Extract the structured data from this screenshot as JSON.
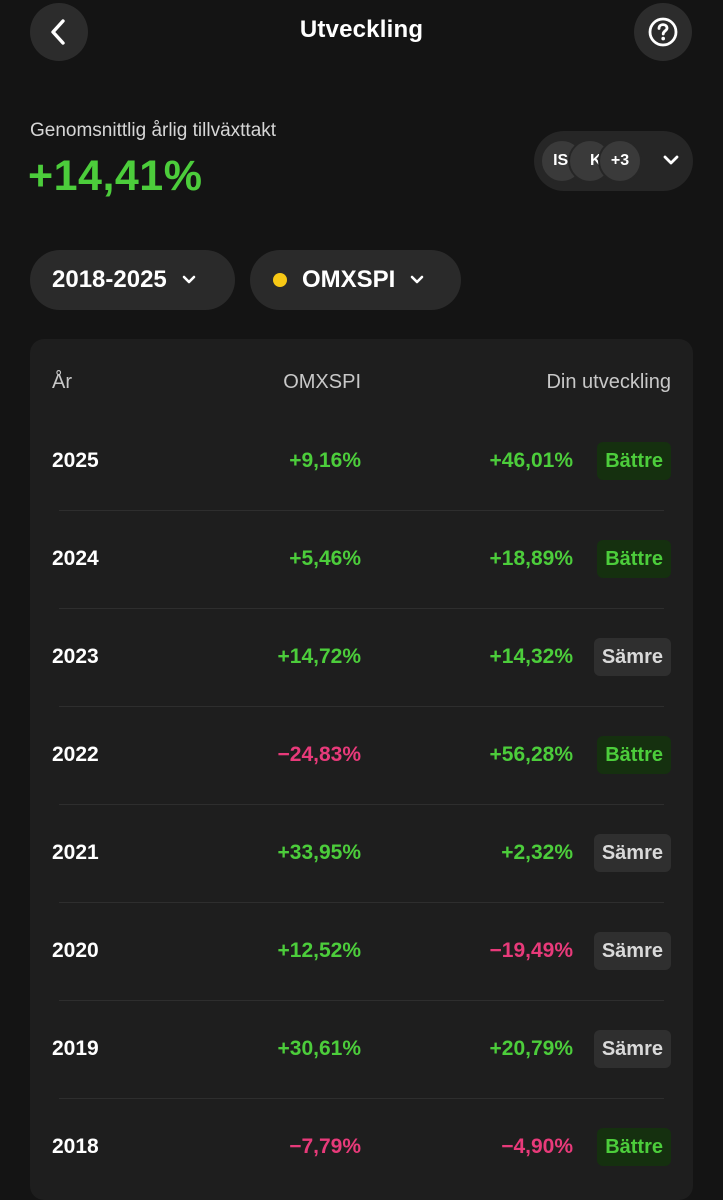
{
  "header": {
    "title": "Utveckling",
    "back_icon": "chevron-left-icon",
    "help_icon": "question-circle-icon"
  },
  "growth": {
    "label": "Genomsnittlig årlig tillväxttakt",
    "value": "+14,41%",
    "color": "#4ccd3b"
  },
  "holdings": {
    "chips": [
      "ISF",
      "KI",
      "+3"
    ],
    "chevron_icon": "chevron-down-icon"
  },
  "filters": {
    "period": "2018-2025",
    "index": "OMXSPI",
    "index_dot_color": "#f7c815"
  },
  "table": {
    "headers": {
      "year": "År",
      "index": "OMXSPI",
      "own": "Din utveckling"
    },
    "rows": [
      {
        "year": "2025",
        "index": "+9,16%",
        "index_sign": "pos",
        "own": "+46,01%",
        "own_sign": "pos",
        "badge": "Bättre",
        "badge_type": "better"
      },
      {
        "year": "2024",
        "index": "+5,46%",
        "index_sign": "pos",
        "own": "+18,89%",
        "own_sign": "pos",
        "badge": "Bättre",
        "badge_type": "better"
      },
      {
        "year": "2023",
        "index": "+14,72%",
        "index_sign": "pos",
        "own": "+14,32%",
        "own_sign": "pos",
        "badge": "Sämre",
        "badge_type": "worse"
      },
      {
        "year": "2022",
        "index": "−24,83%",
        "index_sign": "neg",
        "own": "+56,28%",
        "own_sign": "pos",
        "badge": "Bättre",
        "badge_type": "better"
      },
      {
        "year": "2021",
        "index": "+33,95%",
        "index_sign": "pos",
        "own": "+2,32%",
        "own_sign": "pos",
        "badge": "Sämre",
        "badge_type": "worse"
      },
      {
        "year": "2020",
        "index": "+12,52%",
        "index_sign": "pos",
        "own": "−19,49%",
        "own_sign": "neg",
        "badge": "Sämre",
        "badge_type": "worse"
      },
      {
        "year": "2019",
        "index": "+30,61%",
        "index_sign": "pos",
        "own": "+20,79%",
        "own_sign": "pos",
        "badge": "Sämre",
        "badge_type": "worse"
      },
      {
        "year": "2018",
        "index": "−7,79%",
        "index_sign": "neg",
        "own": "−4,90%",
        "own_sign": "neg",
        "badge": "Bättre",
        "badge_type": "better"
      }
    ]
  },
  "colors": {
    "positive": "#4ccd3b",
    "negative": "#e83a7a",
    "background": "#141414",
    "card": "#1e1e1e"
  }
}
